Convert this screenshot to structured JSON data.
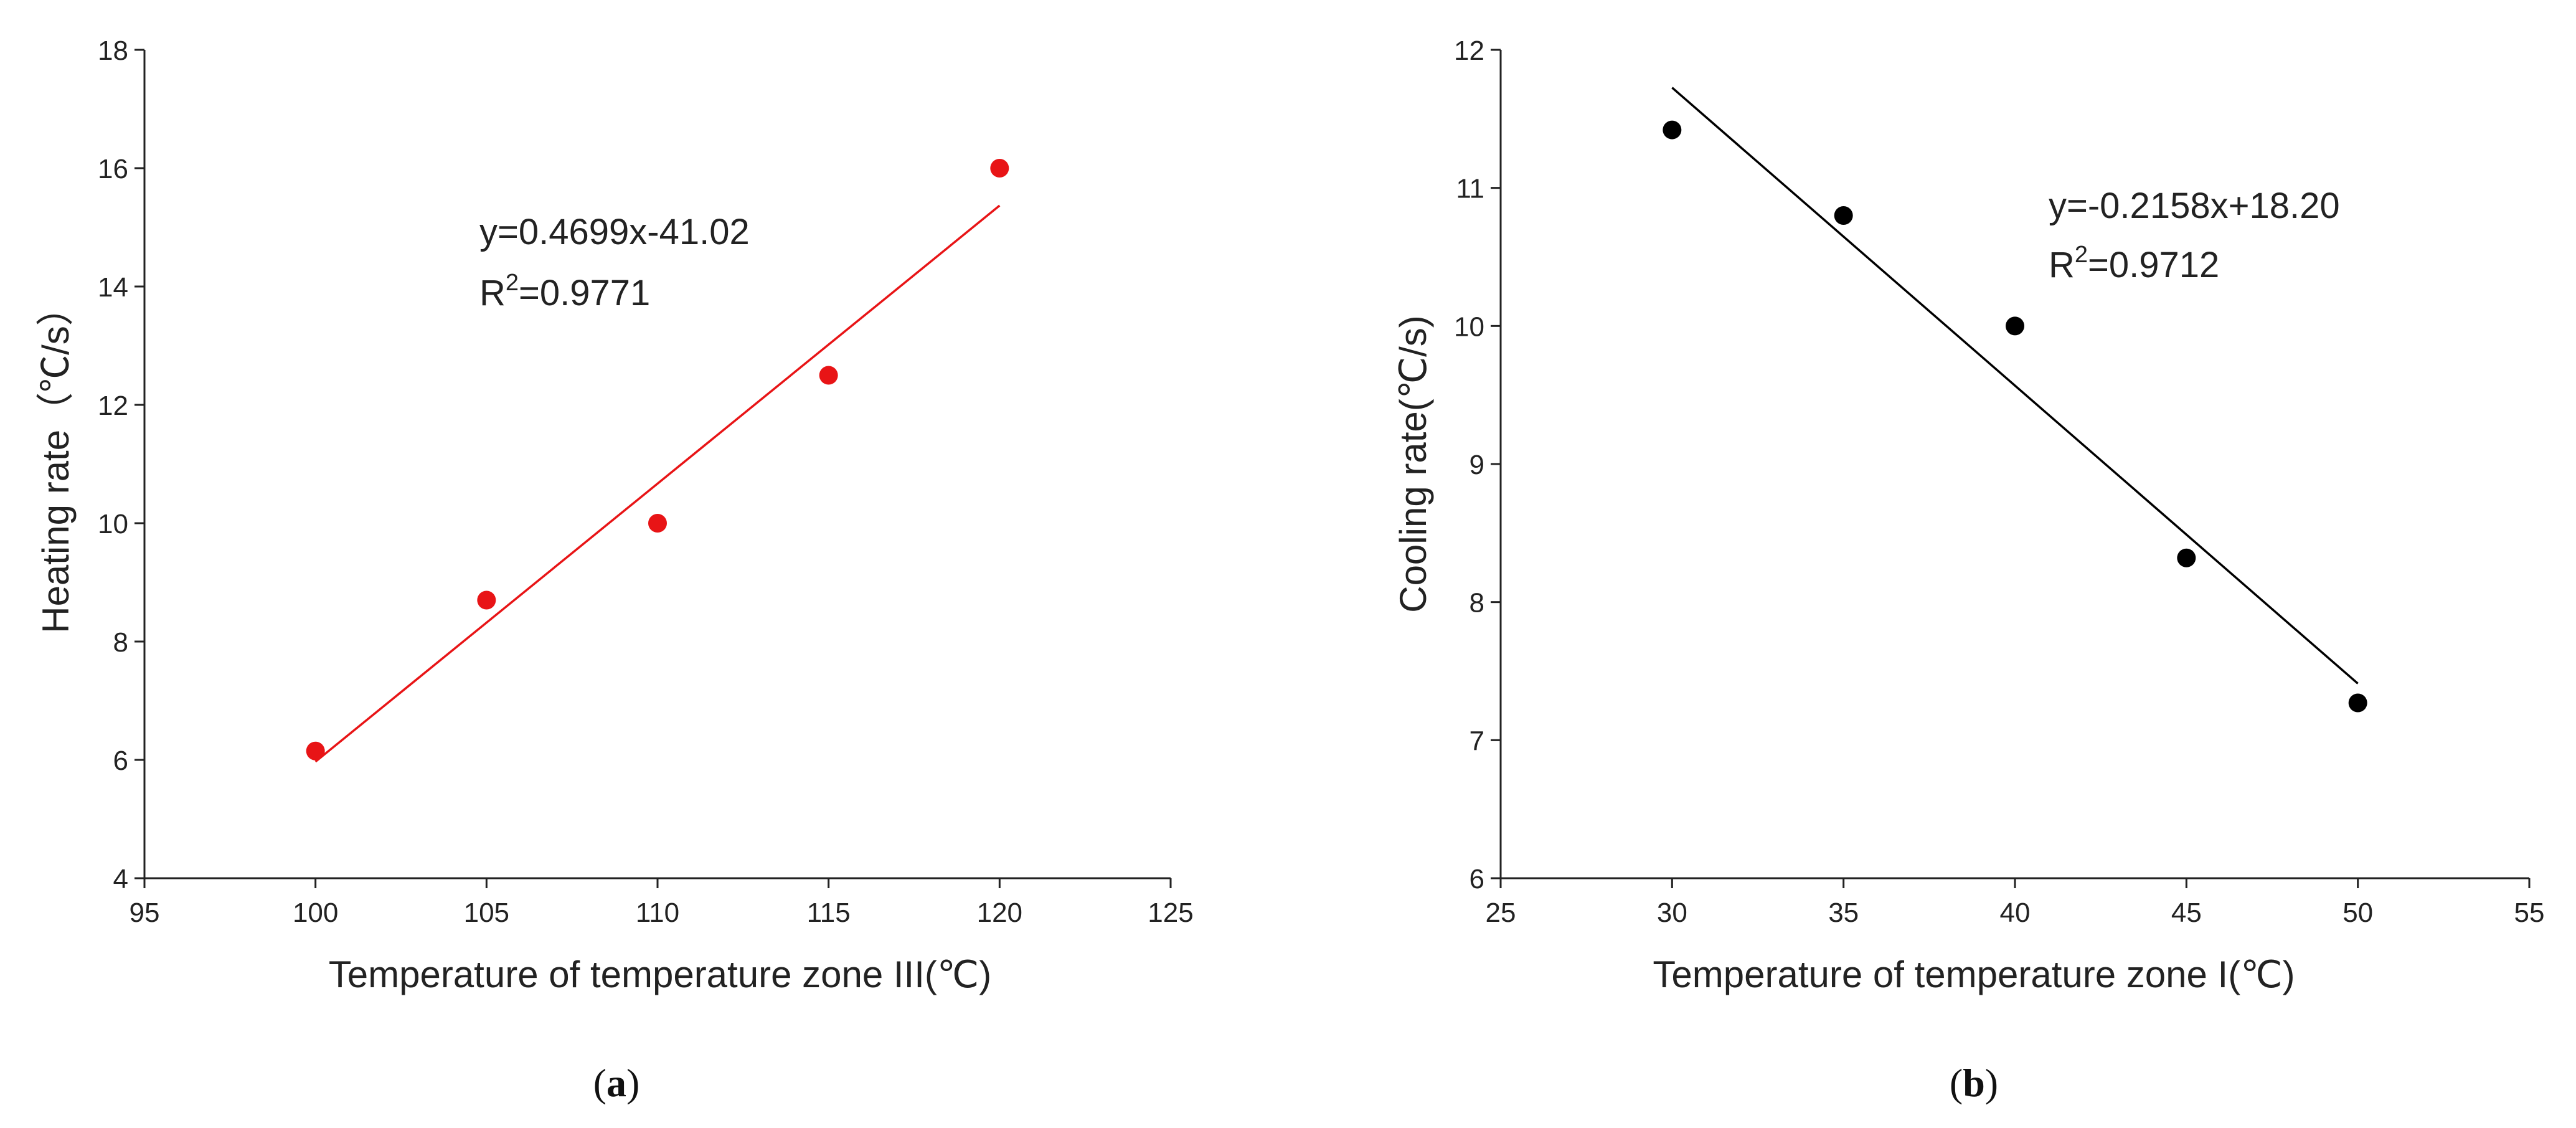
{
  "chart_data": [
    {
      "type": "scatter",
      "panel": "a",
      "caption_letter": "a",
      "xlabel": "Temperature of temperature zone III(℃)",
      "ylabel": "Heating rate（℃/s）",
      "xlim": [
        95,
        125
      ],
      "ylim": [
        4,
        18
      ],
      "xticks": [
        95,
        100,
        105,
        110,
        115,
        120,
        125
      ],
      "yticks": [
        4,
        6,
        8,
        10,
        12,
        14,
        16,
        18
      ],
      "color": "#e81416",
      "points": [
        {
          "x": 100,
          "y": 6.15
        },
        {
          "x": 105,
          "y": 8.7
        },
        {
          "x": 110,
          "y": 10.0
        },
        {
          "x": 115,
          "y": 12.5
        },
        {
          "x": 120,
          "y": 16.0
        }
      ],
      "fit": {
        "slope": 0.4699,
        "intercept": -41.02,
        "x_range": [
          100,
          120
        ]
      },
      "equation_text": "y=0.4699x-41.02",
      "r2_prefix": "R",
      "r2_sup": "2",
      "r2_value": "=0.9771"
    },
    {
      "type": "scatter",
      "panel": "b",
      "caption_letter": "b",
      "xlabel": "Temperature of temperature zone I(℃)",
      "ylabel": "Cooling rate(℃/s)",
      "xlim": [
        25,
        55
      ],
      "ylim": [
        6,
        12
      ],
      "xticks": [
        25,
        30,
        35,
        40,
        45,
        50,
        55
      ],
      "yticks": [
        6,
        7,
        8,
        9,
        10,
        11,
        12
      ],
      "color": "#000000",
      "points": [
        {
          "x": 30,
          "y": 11.42
        },
        {
          "x": 35,
          "y": 10.8
        },
        {
          "x": 40,
          "y": 10.0
        },
        {
          "x": 45,
          "y": 8.32
        },
        {
          "x": 50,
          "y": 7.27
        }
      ],
      "fit": {
        "slope": -0.2158,
        "intercept": 18.2,
        "x_range": [
          30,
          50
        ]
      },
      "equation_text": "y=-0.2158x+18.20",
      "r2_prefix": "R",
      "r2_sup": "2",
      "r2_value": "=0.9712"
    }
  ]
}
